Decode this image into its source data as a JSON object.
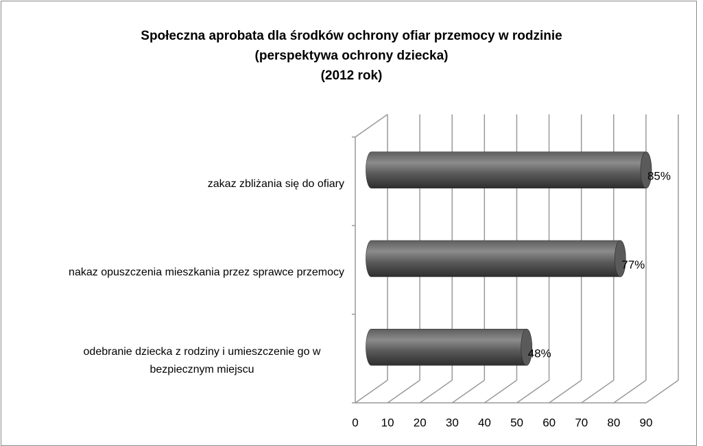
{
  "chart_data": {
    "type": "bar3d-horizontal",
    "title": "Społeczna aprobata dla środków ochrony ofiar przemocy w rodzinie\n(perspektywa ochrony dziecka)\n(2012 rok)",
    "categories": [
      "zakaz zbliżania się do  ofiary",
      "nakaz opuszczenia mieszkania przez sprawce przemocy",
      "odebranie dziecka z rodziny i umieszczenie go w bezpiecznym miejscu"
    ],
    "values": [
      85,
      77,
      48
    ],
    "value_labels": [
      "85%",
      "77%",
      "48%"
    ],
    "color": "#5a5a5a",
    "xlim": [
      0,
      90
    ],
    "xticks": [
      0,
      10,
      20,
      30,
      40,
      50,
      60,
      70,
      80,
      90
    ],
    "grid": true
  }
}
